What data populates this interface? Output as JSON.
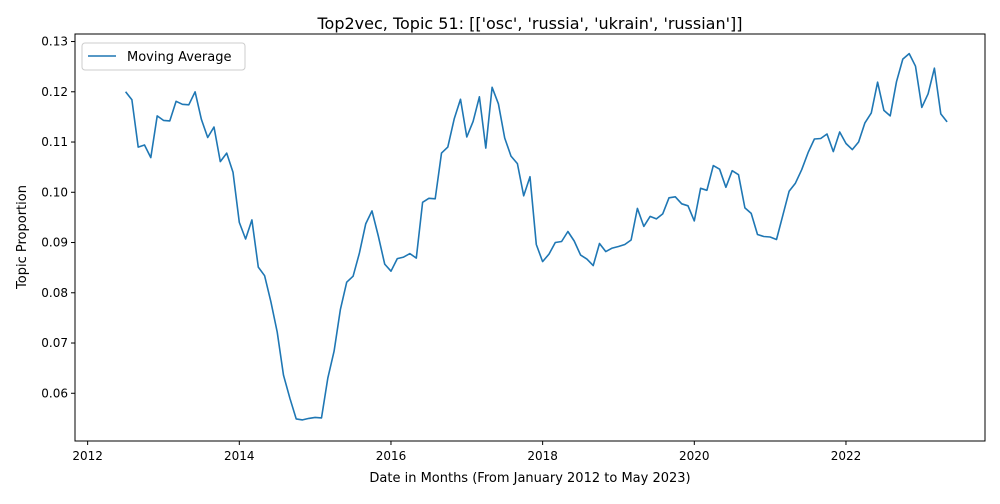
{
  "chart_data": {
    "type": "line",
    "title": "Top2vec, Topic 51: [['osc', 'russia', 'ukrain', 'russian']]",
    "xlabel": "Date in Months (From January 2012 to May 2023)",
    "ylabel": "Topic Proportion",
    "x_ticks": [
      "2012",
      "2014",
      "2016",
      "2018",
      "2020",
      "2022"
    ],
    "y_ticks": [
      "0.06",
      "0.07",
      "0.08",
      "0.09",
      "0.10",
      "0.11",
      "0.12",
      "0.13"
    ],
    "xlim": [
      "2011-11",
      "2023-11"
    ],
    "ylim": [
      0.0505,
      0.1315
    ],
    "grid": false,
    "legend_position": "top-left",
    "series": [
      {
        "name": "Moving Average",
        "color": "#1f77b4",
        "x": [
          "2012-07",
          "2012-08",
          "2012-09",
          "2012-10",
          "2012-11",
          "2012-12",
          "2013-01",
          "2013-02",
          "2013-03",
          "2013-04",
          "2013-05",
          "2013-06",
          "2013-07",
          "2013-08",
          "2013-09",
          "2013-10",
          "2013-11",
          "2013-12",
          "2014-01",
          "2014-02",
          "2014-03",
          "2014-04",
          "2014-05",
          "2014-06",
          "2014-07",
          "2014-08",
          "2014-09",
          "2014-10",
          "2014-11",
          "2014-12",
          "2015-01",
          "2015-02",
          "2015-03",
          "2015-04",
          "2015-05",
          "2015-06",
          "2015-07",
          "2015-08",
          "2015-09",
          "2015-10",
          "2015-11",
          "2015-12",
          "2016-01",
          "2016-02",
          "2016-03",
          "2016-04",
          "2016-05",
          "2016-06",
          "2016-07",
          "2016-08",
          "2016-09",
          "2016-10",
          "2016-11",
          "2016-12",
          "2017-01",
          "2017-02",
          "2017-03",
          "2017-04",
          "2017-05",
          "2017-06",
          "2017-07",
          "2017-08",
          "2017-09",
          "2017-10",
          "2017-11",
          "2017-12",
          "2018-01",
          "2018-02",
          "2018-03",
          "2018-04",
          "2018-05",
          "2018-06",
          "2018-07",
          "2018-08",
          "2018-09",
          "2018-10",
          "2018-11",
          "2018-12",
          "2019-01",
          "2019-02",
          "2019-03",
          "2019-04",
          "2019-05",
          "2019-06",
          "2019-07",
          "2019-08",
          "2019-09",
          "2019-10",
          "2019-11",
          "2019-12",
          "2020-01",
          "2020-02",
          "2020-03",
          "2020-04",
          "2020-05",
          "2020-06",
          "2020-07",
          "2020-08",
          "2020-09",
          "2020-10",
          "2020-11",
          "2020-12",
          "2021-01",
          "2021-02",
          "2021-03",
          "2021-04",
          "2021-05",
          "2021-06",
          "2021-07",
          "2021-08",
          "2021-09",
          "2021-10",
          "2021-11",
          "2021-12",
          "2022-01",
          "2022-02",
          "2022-03",
          "2022-04",
          "2022-05",
          "2022-06",
          "2022-07",
          "2022-08",
          "2022-09",
          "2022-10",
          "2022-11",
          "2022-12",
          "2023-01",
          "2023-02",
          "2023-03",
          "2023-04",
          "2023-05"
        ],
        "values": [
          0.12,
          0.1184,
          0.109,
          0.1094,
          0.1069,
          0.1152,
          0.1143,
          0.1142,
          0.1181,
          0.1175,
          0.1174,
          0.12,
          0.1145,
          0.1109,
          0.113,
          0.1061,
          0.1078,
          0.104,
          0.094,
          0.0907,
          0.0945,
          0.0851,
          0.0834,
          0.0782,
          0.0722,
          0.0636,
          0.059,
          0.0549,
          0.0547,
          0.055,
          0.0552,
          0.0551,
          0.063,
          0.0684,
          0.0767,
          0.0821,
          0.0833,
          0.0879,
          0.0937,
          0.0963,
          0.0913,
          0.0857,
          0.0843,
          0.0868,
          0.0871,
          0.0878,
          0.0869,
          0.098,
          0.0988,
          0.0987,
          0.1078,
          0.109,
          0.1146,
          0.1185,
          0.111,
          0.1141,
          0.119,
          0.1088,
          0.1209,
          0.1176,
          0.1108,
          0.1072,
          0.1057,
          0.0993,
          0.1031,
          0.0896,
          0.0862,
          0.0877,
          0.09,
          0.0902,
          0.0922,
          0.0903,
          0.0875,
          0.0867,
          0.0854,
          0.0898,
          0.0882,
          0.0889,
          0.0892,
          0.0896,
          0.0905,
          0.0968,
          0.0932,
          0.0952,
          0.0947,
          0.0957,
          0.0989,
          0.0991,
          0.0977,
          0.0973,
          0.0943,
          0.1008,
          0.1004,
          0.1053,
          0.1046,
          0.101,
          0.1043,
          0.1035,
          0.0969,
          0.0958,
          0.0916,
          0.0912,
          0.0911,
          0.0906,
          0.0954,
          0.1002,
          0.1018,
          0.1045,
          0.1079,
          0.1106,
          0.1107,
          0.1116,
          0.1081,
          0.112,
          0.1097,
          0.1085,
          0.11,
          0.1138,
          0.1158,
          0.1219,
          0.1163,
          0.1152,
          0.122,
          0.1265,
          0.1276,
          0.1251,
          0.1169,
          0.1196,
          0.1247,
          0.1156,
          0.114
        ]
      }
    ]
  }
}
